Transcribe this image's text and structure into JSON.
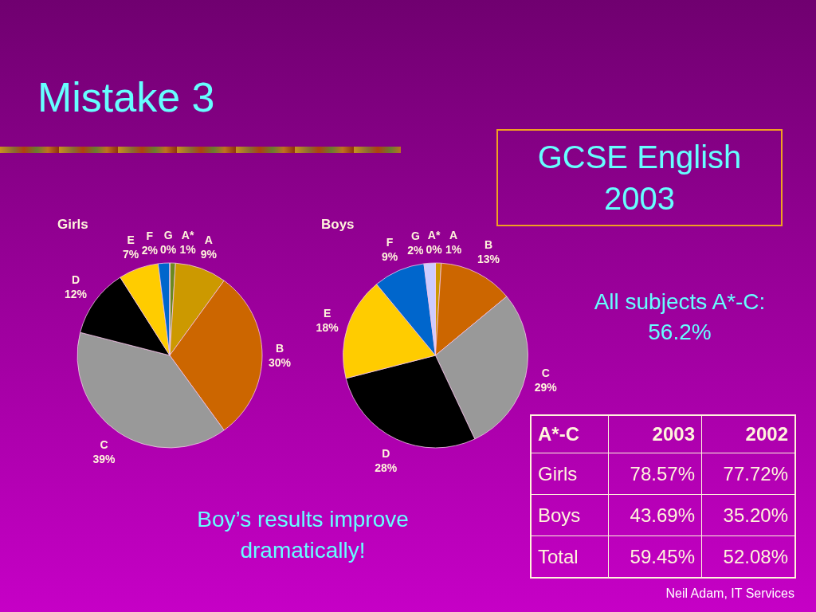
{
  "chart_data": [
    {
      "type": "pie",
      "title": "Girls",
      "categories": [
        "A*",
        "A",
        "B",
        "C",
        "D",
        "E",
        "F",
        "G"
      ],
      "values": [
        1,
        9,
        30,
        39,
        12,
        7,
        2,
        0
      ],
      "colors": [
        "#6b8a1e",
        "#cc9900",
        "#cc6600",
        "#999999",
        "#000000",
        "#ffcc00",
        "#0066cc",
        "#ccccff"
      ],
      "value_labels": [
        "1%",
        "9%",
        "30%",
        "39%",
        "12%",
        "7%",
        "2%",
        "0%"
      ]
    },
    {
      "type": "pie",
      "title": "Boys",
      "categories": [
        "A*",
        "A",
        "B",
        "C",
        "D",
        "E",
        "F",
        "G"
      ],
      "values": [
        0,
        1,
        13,
        29,
        28,
        18,
        9,
        2
      ],
      "colors": [
        "#6b8a1e",
        "#cc9900",
        "#cc6600",
        "#999999",
        "#000000",
        "#ffcc00",
        "#0066cc",
        "#ccccff"
      ],
      "value_labels": [
        "0%",
        "1%",
        "13%",
        "29%",
        "28%",
        "18%",
        "9%",
        "2%"
      ]
    },
    {
      "type": "other",
      "title": "Mistake 3",
      "subtitle": "GCSE English 2003",
      "ylabel": "A*-C",
      "categories": [
        "2003",
        "2002"
      ],
      "y_categories": [
        "Girls",
        "Boys",
        "Total"
      ],
      "cell_labels": [
        [
          "78.57%",
          "77.72%"
        ],
        [
          "43.69%",
          "35.20%"
        ],
        [
          "59.45%",
          "52.08%"
        ]
      ],
      "annotations": [
        "All subjects A*-C: 56.2%",
        "Boy’s results improve dramatically!",
        "Neil Adam, IT Services"
      ]
    }
  ]
}
